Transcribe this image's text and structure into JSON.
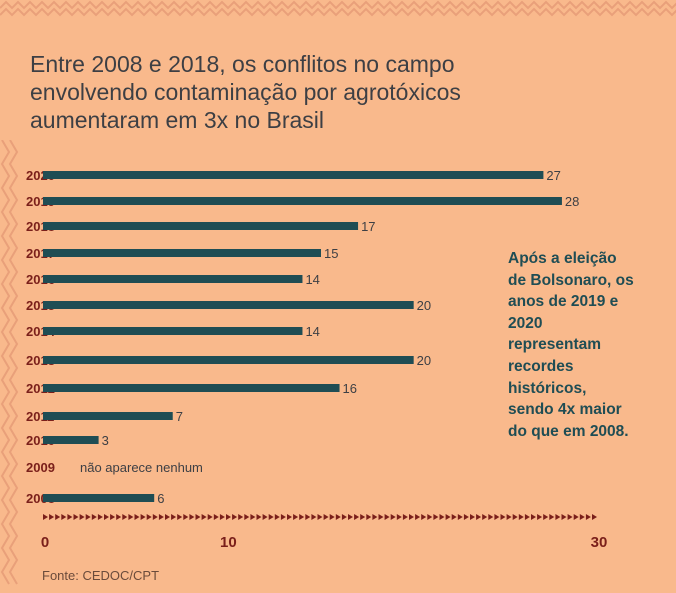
{
  "title_lines": [
    "Entre 2008 e 2018, os conflitos no campo",
    "envolvendo contaminação por agrotóxicos",
    "aumentaram em 3x no Brasil"
  ],
  "annotation_lines": [
    "Após a eleição",
    "de Bolsonaro, os",
    "anos de 2019 e",
    "2020",
    "representam",
    "recordes",
    "históricos,",
    "sendo 4x maior",
    "do que em 2008."
  ],
  "source": "Fonte: CEDOC/CPT",
  "colors": {
    "background": "#f9b98c",
    "bar": "#1f4d54",
    "year_label": "#7a1f1a",
    "title": "#3d3f44",
    "border": "#e9a07a"
  },
  "chart_data": {
    "type": "bar",
    "orientation": "horizontal",
    "categories": [
      "2020",
      "2019",
      "2018",
      "2017",
      "2016",
      "2015",
      "2014",
      "2013",
      "2012",
      "2011",
      "2010",
      "2009",
      "2008"
    ],
    "values": [
      27,
      28,
      17,
      15,
      14,
      20,
      14,
      20,
      16,
      7,
      3,
      null,
      6
    ],
    "value_labels": [
      "27",
      "28",
      "17",
      "15",
      "14",
      "20",
      "14",
      "20",
      "16",
      "7",
      "3",
      "",
      "6"
    ],
    "missing_note": "não aparece nenhum",
    "xlim": [
      0,
      30
    ],
    "xticks": [
      0,
      10,
      30
    ],
    "xtick_labels": [
      "0",
      "10",
      "30"
    ],
    "grid": false
  }
}
